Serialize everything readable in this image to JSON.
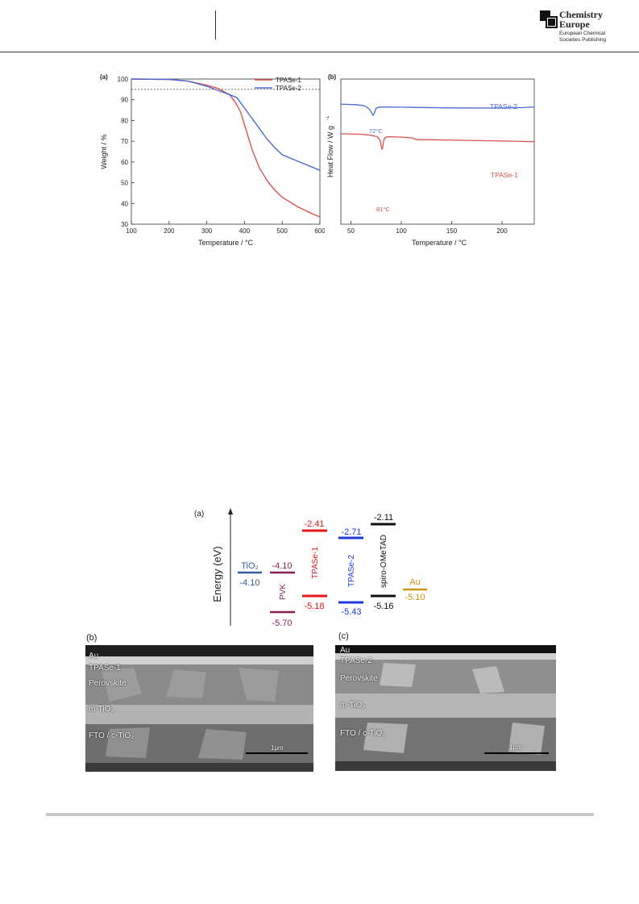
{
  "header": {
    "logo_line1": "Chemistry",
    "logo_line2": "Europe",
    "publisher_line1": "European Chemical",
    "publisher_line2": "Societies Publishing"
  },
  "colors": {
    "tpase1": "#d9534f",
    "tpase2": "#4a6bd0",
    "tio2": "#2e5fa0",
    "pvk": "#8a1f54",
    "te1": "#e4161b",
    "te2": "#1e38e0",
    "spiro": "#111111",
    "au": "#c9940f",
    "sem_bg": "#5a5a5a"
  },
  "chart_data": [
    {
      "type": "line",
      "panel": "(a)",
      "xlabel": "Temperature / °C",
      "ylabel": "Weight / %",
      "xlim": [
        100,
        600
      ],
      "ylim": [
        30,
        100
      ],
      "xticks": [
        100,
        200,
        300,
        400,
        500,
        600
      ],
      "yticks": [
        30,
        40,
        50,
        60,
        70,
        80,
        90,
        100
      ],
      "reference_line": 95,
      "legend_position": "top-right",
      "series": [
        {
          "name": "TPASe-1",
          "x": [
            100,
            200,
            250,
            300,
            330,
            360,
            375,
            390,
            400,
            420,
            440,
            460,
            480,
            500,
            540,
            580,
            600
          ],
          "y": [
            100,
            99.8,
            99,
            97,
            95.5,
            92.5,
            89,
            84,
            78,
            66,
            57,
            51,
            46.5,
            43,
            38.5,
            35,
            33.5
          ]
        },
        {
          "name": "TPASe-2",
          "x": [
            100,
            200,
            250,
            300,
            330,
            360,
            380,
            400,
            420,
            440,
            460,
            480,
            500,
            540,
            580,
            600
          ],
          "y": [
            100,
            99.8,
            99,
            96.5,
            94.5,
            92.5,
            91,
            86,
            81,
            76,
            71,
            67,
            63.5,
            60.5,
            57.5,
            56
          ]
        }
      ]
    },
    {
      "type": "line",
      "panel": "(b)",
      "xlabel": "Temperature / °C",
      "ylabel": "Heat Flow / W g",
      "ylabel_superscript": "-1",
      "xlim": [
        40,
        232
      ],
      "xticks": [
        50,
        100,
        150,
        200
      ],
      "series": [
        {
          "name": "TPASe-2",
          "label": "TPASe-2",
          "peak_label": "72°C",
          "x": [
            40,
            55,
            62,
            66,
            69,
            71,
            72,
            73,
            75,
            78,
            85,
            100,
            150,
            200,
            220,
            232
          ],
          "y": [
            -1,
            -1.6,
            -2.4,
            -4.2,
            -7.5,
            -11.5,
            -13,
            -11,
            -5.5,
            -4.2,
            -4.1,
            -4.3,
            -5.0,
            -5.2,
            -4.8,
            -4.0
          ]
        },
        {
          "name": "TPASe-1",
          "label": "TPASe-1",
          "peak_label": "81°C",
          "x": [
            40,
            60,
            70,
            76,
            79,
            80,
            81,
            82,
            83,
            86,
            90,
            100,
            110,
            113,
            116,
            130,
            160,
            200,
            232
          ],
          "y": [
            -33,
            -33.5,
            -34.5,
            -36,
            -40,
            -46,
            -50,
            -44,
            -38,
            -36.3,
            -36.2,
            -36.5,
            -37.3,
            -38.3,
            -39.3,
            -39.4,
            -40.0,
            -40.8,
            -41.5
          ]
        }
      ]
    },
    {
      "type": "bar",
      "panel": "(a)",
      "ylabel": "Energy (eV)",
      "levels": [
        {
          "material": "TiO₂",
          "values": [
            -4.1
          ]
        },
        {
          "material": "PVK",
          "values": [
            -4.1,
            -5.7
          ]
        },
        {
          "material": "TPASe-1",
          "values": [
            -2.41,
            -5.18
          ]
        },
        {
          "material": "TPASe-2",
          "values": [
            -2.71,
            -5.43
          ]
        },
        {
          "material": "spiro-OMeTAD",
          "values": [
            -2.11,
            -5.16
          ]
        },
        {
          "material": "Au",
          "values": [
            -5.1
          ]
        }
      ],
      "labels": {
        "tio2": "TiO₂",
        "tio2_val": "-4.10",
        "pvk": "PVK",
        "pvk_top": "-4.10",
        "pvk_bot": "-5.70",
        "te1": "TPASe-1",
        "te1_top": "-2.41",
        "te1_bot": "-5.18",
        "te2": "TPASe-2",
        "te2_top": "-2.71",
        "te2_bot": "-5.43",
        "spiro": "spiro-OMeTAD",
        "spiro_top": "-2.11",
        "spiro_bot": "-5.16",
        "au": "Au",
        "au_val": "-5.10"
      }
    }
  ],
  "sem": {
    "b": {
      "panel": "(b)",
      "au": "Au",
      "htm": "TPASe-1",
      "perov": "Perovskite",
      "mtio2": "m-TiO₂",
      "fto": "FTO / c-TiO₂",
      "scale": "1μm"
    },
    "c": {
      "panel": "(c)",
      "au": "Au",
      "htm": "TPASe-2",
      "perov": "Perovskite",
      "mtio2": "m-TiO₂",
      "fto": "FTO / c-TiO₂",
      "scale": "1μm"
    }
  }
}
